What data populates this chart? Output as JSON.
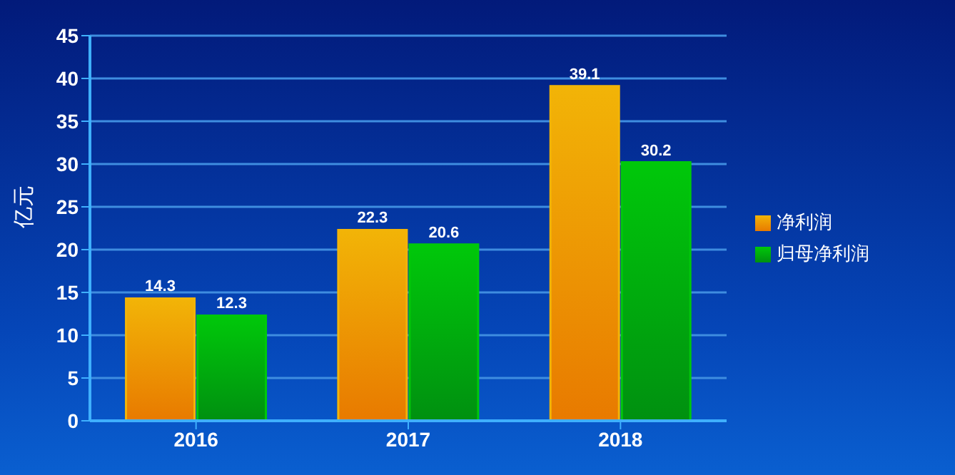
{
  "chart_data": {
    "type": "bar",
    "ylabel": "亿元",
    "categories": [
      "2016",
      "2017",
      "2018"
    ],
    "series": [
      {
        "name": "净利润",
        "color": "#f2b407",
        "values": [
          14.3,
          22.3,
          39.1
        ]
      },
      {
        "name": "归母净利润",
        "color": "#00c80a",
        "values": [
          12.3,
          20.6,
          30.2
        ]
      }
    ],
    "ylim": [
      0,
      45
    ],
    "yticks": [
      0,
      5,
      10,
      15,
      20,
      25,
      30,
      35,
      40,
      45
    ],
    "grid": "y",
    "legend": "right",
    "data_labels": true
  }
}
